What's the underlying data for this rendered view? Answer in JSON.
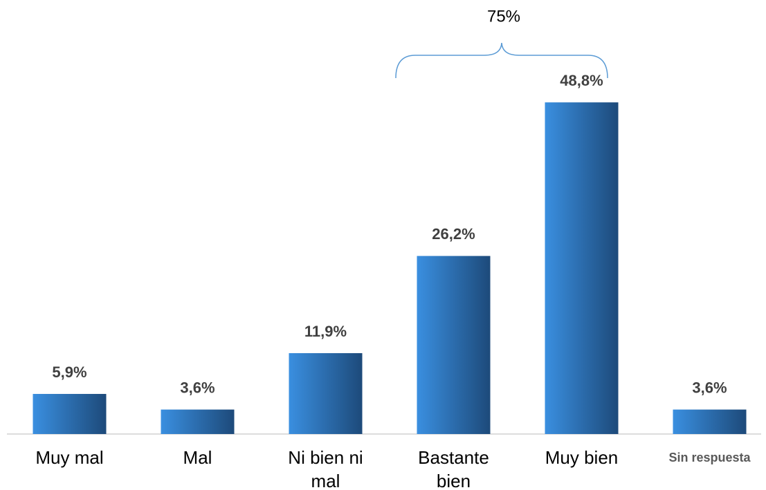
{
  "chart_data": {
    "type": "bar",
    "categories": [
      "Muy mal",
      "Mal",
      "Ni bien ni mal",
      "Bastante bien",
      "Muy bien",
      "Sin respuesta"
    ],
    "values": [
      5.9,
      3.6,
      11.9,
      26.2,
      48.8,
      3.6
    ],
    "value_labels": [
      "5,9%",
      "3,6%",
      "11,9%",
      "26,2%",
      "48,8%",
      "3,6%"
    ],
    "gradient": [
      "#3a8fe0",
      "#1d4a7a"
    ],
    "ylim": [
      0,
      60
    ],
    "annotation": "75%"
  }
}
